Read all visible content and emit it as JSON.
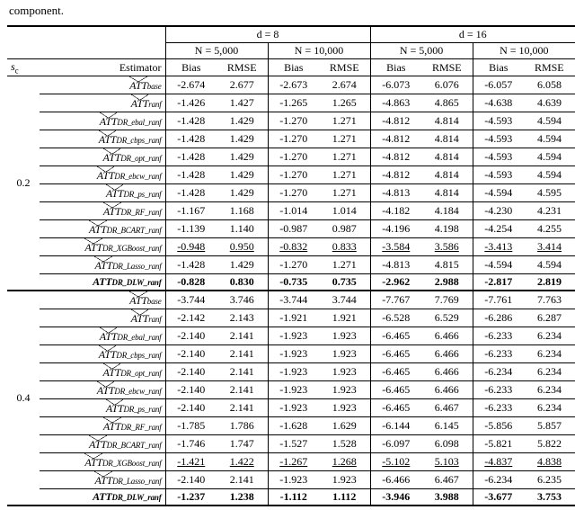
{
  "caption_fragment": "component.",
  "header": {
    "d8": "d = 8",
    "d16": "d = 16",
    "n5k": "N = 5,000",
    "n10k": "N = 10,000",
    "sc": "s",
    "sc_sub": "c",
    "est": "Estimator",
    "bias": "Bias",
    "rmse": "RMSE"
  },
  "estimator_base": "ATT",
  "subs": [
    "base",
    "ranf",
    "DR_ebal_ranf",
    "DR_cbps_ranf",
    "DR_opt_ranf",
    "DR_ebcw_ranf",
    "DR_ps_ranf",
    "DR_RF_ranf",
    "DR_BCART_ranf",
    "DR_XGBoost_ranf",
    "DR_Lasso_ranf",
    "DR_DLW_ranf"
  ],
  "sc_vals": [
    "0.2",
    "0.4"
  ],
  "flags": {
    "bold_rows": [
      11,
      23
    ],
    "underline_rows": [
      9,
      21
    ]
  },
  "rows": [
    [
      "-2.674",
      "2.677",
      "-2.673",
      "2.674",
      "-6.073",
      "6.076",
      "-6.057",
      "6.058"
    ],
    [
      "-1.426",
      "1.427",
      "-1.265",
      "1.265",
      "-4.863",
      "4.865",
      "-4.638",
      "4.639"
    ],
    [
      "-1.428",
      "1.429",
      "-1.270",
      "1.271",
      "-4.812",
      "4.814",
      "-4.593",
      "4.594"
    ],
    [
      "-1.428",
      "1.429",
      "-1.270",
      "1.271",
      "-4.812",
      "4.814",
      "-4.593",
      "4.594"
    ],
    [
      "-1.428",
      "1.429",
      "-1.270",
      "1.271",
      "-4.812",
      "4.814",
      "-4.593",
      "4.594"
    ],
    [
      "-1.428",
      "1.429",
      "-1.270",
      "1.271",
      "-4.812",
      "4.814",
      "-4.593",
      "4.594"
    ],
    [
      "-1.428",
      "1.429",
      "-1.270",
      "1.271",
      "-4.813",
      "4.814",
      "-4.594",
      "4.595"
    ],
    [
      "-1.167",
      "1.168",
      "-1.014",
      "1.014",
      "-4.182",
      "4.184",
      "-4.230",
      "4.231"
    ],
    [
      "-1.139",
      "1.140",
      "-0.987",
      "0.987",
      "-4.196",
      "4.198",
      "-4.254",
      "4.255"
    ],
    [
      "-0.948",
      "0.950",
      "-0.832",
      "0.833",
      "-3.584",
      "3.586",
      "-3.413",
      "3.414"
    ],
    [
      "-1.428",
      "1.429",
      "-1.270",
      "1.271",
      "-4.813",
      "4.815",
      "-4.594",
      "4.594"
    ],
    [
      "-0.828",
      "0.830",
      "-0.735",
      "0.735",
      "-2.962",
      "2.988",
      "-2.817",
      "2.819"
    ],
    [
      "-3.744",
      "3.746",
      "-3.744",
      "3.744",
      "-7.767",
      "7.769",
      "-7.761",
      "7.763"
    ],
    [
      "-2.142",
      "2.143",
      "-1.921",
      "1.921",
      "-6.528",
      "6.529",
      "-6.286",
      "6.287"
    ],
    [
      "-2.140",
      "2.141",
      "-1.923",
      "1.923",
      "-6.465",
      "6.466",
      "-6.233",
      "6.234"
    ],
    [
      "-2.140",
      "2.141",
      "-1.923",
      "1.923",
      "-6.465",
      "6.466",
      "-6.233",
      "6.234"
    ],
    [
      "-2.140",
      "2.141",
      "-1.923",
      "1.923",
      "-6.465",
      "6.466",
      "-6.234",
      "6.234"
    ],
    [
      "-2.140",
      "2.141",
      "-1.923",
      "1.923",
      "-6.465",
      "6.466",
      "-6.233",
      "6.234"
    ],
    [
      "-2.140",
      "2.141",
      "-1.923",
      "1.923",
      "-6.465",
      "6.467",
      "-6.233",
      "6.234"
    ],
    [
      "-1.785",
      "1.786",
      "-1.628",
      "1.629",
      "-6.144",
      "6.145",
      "-5.856",
      "5.857"
    ],
    [
      "-1.746",
      "1.747",
      "-1.527",
      "1.528",
      "-6.097",
      "6.098",
      "-5.821",
      "5.822"
    ],
    [
      "-1.421",
      "1.422",
      "-1.267",
      "1.268",
      "-5.102",
      "5.103",
      "-4.837",
      "4.838"
    ],
    [
      "-2.140",
      "2.141",
      "-1.923",
      "1.923",
      "-6.466",
      "6.467",
      "-6.234",
      "6.235"
    ],
    [
      "-1.237",
      "1.238",
      "-1.112",
      "1.112",
      "-3.946",
      "3.988",
      "-3.677",
      "3.753"
    ]
  ]
}
